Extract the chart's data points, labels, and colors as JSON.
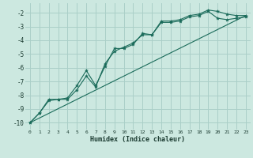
{
  "title": "",
  "xlabel": "Humidex (Indice chaleur)",
  "ylabel": "",
  "bg_color": "#cce8e0",
  "grid_color": "#aacfc8",
  "line_color": "#1a6b5a",
  "xlim": [
    -0.5,
    23.5
  ],
  "ylim": [
    -10.5,
    -1.3
  ],
  "yticks": [
    -10,
    -9,
    -8,
    -7,
    -6,
    -5,
    -4,
    -3,
    -2
  ],
  "xticks": [
    0,
    1,
    2,
    3,
    4,
    5,
    6,
    7,
    8,
    9,
    10,
    11,
    12,
    13,
    14,
    15,
    16,
    17,
    18,
    19,
    20,
    21,
    22,
    23
  ],
  "line1_x": [
    0,
    1,
    2,
    3,
    4,
    5,
    6,
    7,
    8,
    9,
    10,
    11,
    12,
    13,
    14,
    15,
    16,
    17,
    18,
    19,
    20,
    21,
    22,
    23
  ],
  "line1_y": [
    -10.0,
    -9.3,
    -8.3,
    -8.3,
    -8.2,
    -7.3,
    -6.2,
    -7.3,
    -5.9,
    -4.6,
    -4.6,
    -4.3,
    -3.5,
    -3.6,
    -2.6,
    -2.6,
    -2.5,
    -2.2,
    -2.1,
    -1.8,
    -1.9,
    -2.1,
    -2.2,
    -2.2
  ],
  "line2_x": [
    0,
    1,
    2,
    3,
    4,
    5,
    6,
    7,
    8,
    9,
    10,
    11,
    12,
    13,
    14,
    15,
    16,
    17,
    18,
    19,
    20,
    21,
    22,
    23
  ],
  "line2_y": [
    -10.0,
    -9.3,
    -8.4,
    -8.3,
    -8.3,
    -7.6,
    -6.6,
    -7.4,
    -5.7,
    -4.8,
    -4.5,
    -4.2,
    -3.6,
    -3.6,
    -2.7,
    -2.7,
    -2.6,
    -2.3,
    -2.2,
    -1.9,
    -2.4,
    -2.5,
    -2.4,
    -2.3
  ],
  "line3_x": [
    0,
    23
  ],
  "line3_y": [
    -10.0,
    -2.2
  ]
}
